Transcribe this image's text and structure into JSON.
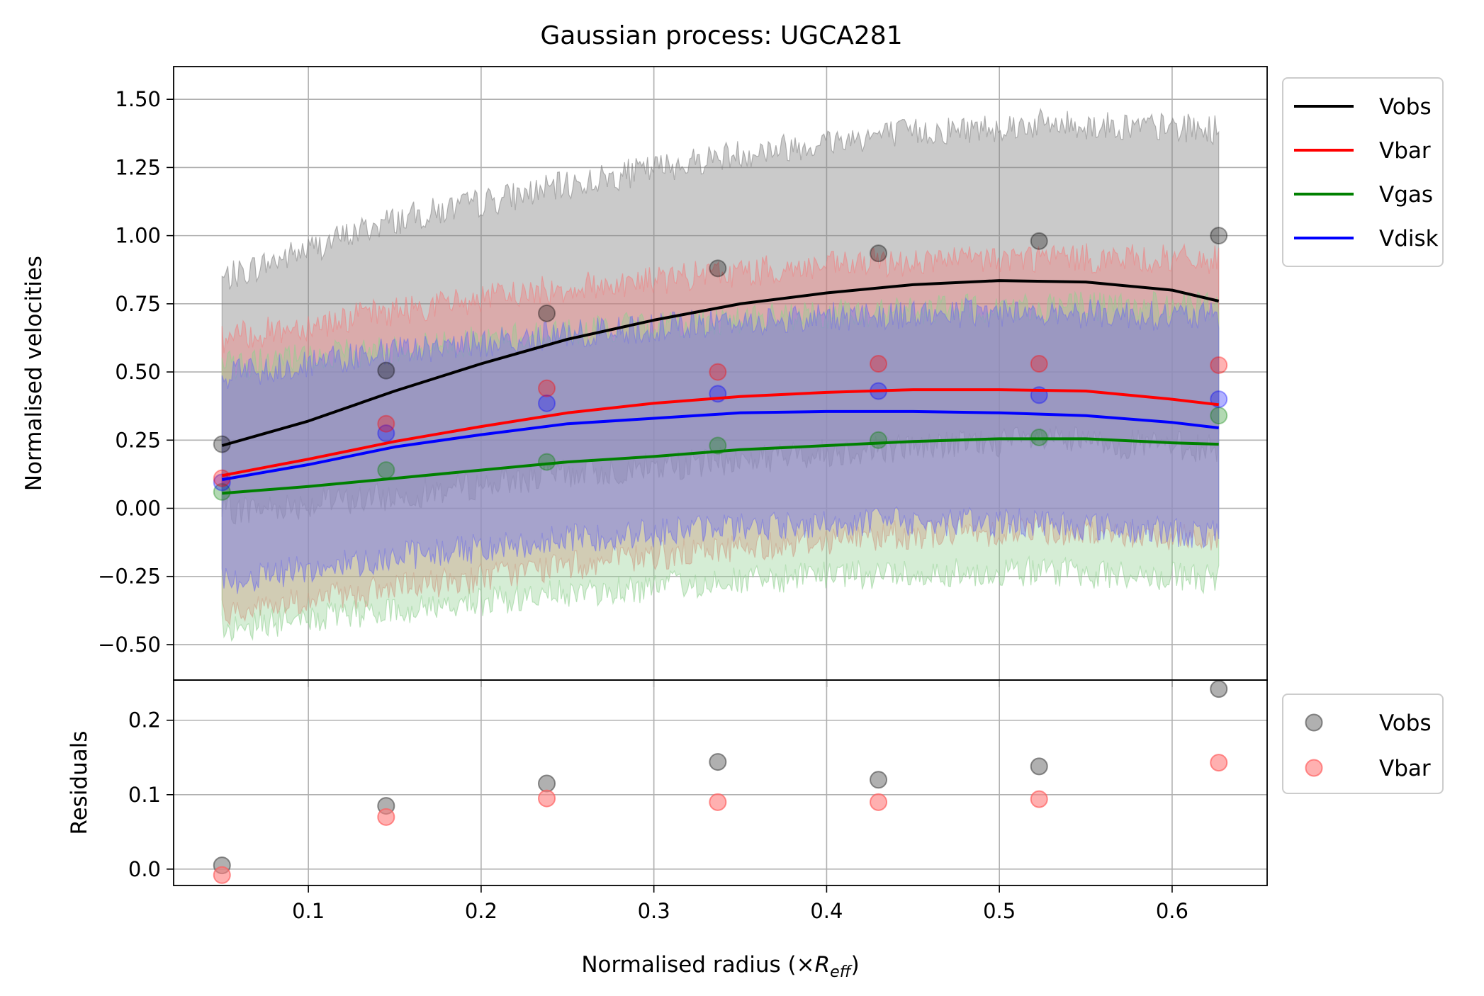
{
  "chart_data": [
    {
      "type": "line",
      "title": "Gaussian process: UGCA281",
      "xlabel": "",
      "ylabel": "Normalised velocities",
      "xlim": [
        0.022,
        0.655
      ],
      "ylim": [
        -0.63,
        1.62
      ],
      "xticks": [
        0.1,
        0.2,
        0.3,
        0.4,
        0.5,
        0.6
      ],
      "yticks": [
        -0.5,
        -0.25,
        0.0,
        0.25,
        0.5,
        0.75,
        1.0,
        1.25,
        1.5
      ],
      "yticklabels": [
        "−0.50",
        "−0.25",
        "0.00",
        "0.25",
        "0.50",
        "0.75",
        "1.00",
        "1.25",
        "1.50"
      ],
      "grid": true,
      "legend_position": "outside-right-top",
      "x_points": [
        0.05,
        0.145,
        0.238,
        0.337,
        0.43,
        0.523,
        0.627
      ],
      "series": [
        {
          "name": "Vobs",
          "color": "#000000",
          "band_color": "#808080",
          "line_x": [
            0.05,
            0.1,
            0.15,
            0.2,
            0.25,
            0.3,
            0.35,
            0.4,
            0.45,
            0.5,
            0.55,
            0.6,
            0.627
          ],
          "line_y": [
            0.23,
            0.32,
            0.43,
            0.53,
            0.62,
            0.69,
            0.75,
            0.79,
            0.82,
            0.835,
            0.83,
            0.8,
            0.76
          ],
          "points_y": [
            0.235,
            0.505,
            0.715,
            0.88,
            0.935,
            0.98,
            1.0
          ],
          "band_upper": [
            0.84,
            1.05,
            1.17,
            1.29,
            1.37,
            1.41,
            1.39
          ],
          "band_lower": [
            -0.01,
            0.04,
            0.12,
            0.17,
            0.22,
            0.25,
            0.22
          ]
        },
        {
          "name": "Vbar",
          "color": "#ff0000",
          "band_color": "#f08080",
          "line_x": [
            0.05,
            0.1,
            0.15,
            0.2,
            0.25,
            0.3,
            0.35,
            0.4,
            0.45,
            0.5,
            0.55,
            0.6,
            0.627
          ],
          "line_y": [
            0.12,
            0.18,
            0.245,
            0.3,
            0.35,
            0.385,
            0.41,
            0.425,
            0.435,
            0.435,
            0.43,
            0.4,
            0.38
          ],
          "points_y": [
            0.11,
            0.31,
            0.44,
            0.5,
            0.53,
            0.53,
            0.525
          ],
          "band_upper": [
            0.62,
            0.72,
            0.8,
            0.86,
            0.9,
            0.92,
            0.91
          ],
          "band_lower": [
            -0.38,
            -0.3,
            -0.22,
            -0.15,
            -0.1,
            -0.08,
            -0.11
          ]
        },
        {
          "name": "Vgas",
          "color": "#008000",
          "band_color": "#90d090",
          "line_x": [
            0.05,
            0.1,
            0.15,
            0.2,
            0.25,
            0.3,
            0.35,
            0.4,
            0.45,
            0.5,
            0.55,
            0.6,
            0.627
          ],
          "line_y": [
            0.055,
            0.08,
            0.11,
            0.14,
            0.17,
            0.19,
            0.215,
            0.23,
            0.245,
            0.255,
            0.255,
            0.24,
            0.235
          ],
          "points_y": [
            0.06,
            0.14,
            0.17,
            0.23,
            0.25,
            0.26,
            0.34
          ],
          "band_upper": [
            0.52,
            0.58,
            0.64,
            0.69,
            0.72,
            0.74,
            0.74
          ],
          "band_lower": [
            -0.44,
            -0.38,
            -0.32,
            -0.27,
            -0.24,
            -0.23,
            -0.26
          ]
        },
        {
          "name": "Vdisk",
          "color": "#0000ff",
          "band_color": "#7070e8",
          "line_x": [
            0.05,
            0.1,
            0.15,
            0.2,
            0.25,
            0.3,
            0.35,
            0.4,
            0.45,
            0.5,
            0.55,
            0.6,
            0.627
          ],
          "line_y": [
            0.105,
            0.16,
            0.225,
            0.27,
            0.31,
            0.33,
            0.35,
            0.355,
            0.355,
            0.35,
            0.34,
            0.315,
            0.295
          ],
          "points_y": [
            0.095,
            0.275,
            0.385,
            0.42,
            0.43,
            0.415,
            0.4
          ],
          "band_upper": [
            0.49,
            0.57,
            0.63,
            0.68,
            0.71,
            0.72,
            0.7
          ],
          "band_lower": [
            -0.27,
            -0.18,
            -0.12,
            -0.07,
            -0.05,
            -0.05,
            -0.1
          ]
        }
      ]
    },
    {
      "type": "scatter",
      "title": "",
      "xlabel": "Normalised radius (×",
      "xlabel_symbol": "R",
      "xlabel_subscript": "eff",
      "xlabel_suffix": ")",
      "ylabel": "Residuals",
      "xlim": [
        0.022,
        0.655
      ],
      "ylim": [
        -0.022,
        0.254
      ],
      "xticks": [
        0.1,
        0.2,
        0.3,
        0.4,
        0.5,
        0.6
      ],
      "xticklabels": [
        "0.1",
        "0.2",
        "0.3",
        "0.4",
        "0.5",
        "0.6"
      ],
      "yticks": [
        0.0,
        0.1,
        0.2
      ],
      "yticklabels": [
        "0.0",
        "0.1",
        "0.2"
      ],
      "grid": true,
      "legend_position": "outside-right-top",
      "x": [
        0.05,
        0.145,
        0.238,
        0.337,
        0.43,
        0.523,
        0.627
      ],
      "series": [
        {
          "name": "Vobs",
          "color": "#808080",
          "values": [
            0.005,
            0.085,
            0.115,
            0.144,
            0.12,
            0.138,
            0.242
          ]
        },
        {
          "name": "Vbar",
          "color": "#ff8080",
          "values": [
            -0.008,
            0.07,
            0.095,
            0.09,
            0.09,
            0.094,
            0.143
          ]
        }
      ]
    }
  ]
}
